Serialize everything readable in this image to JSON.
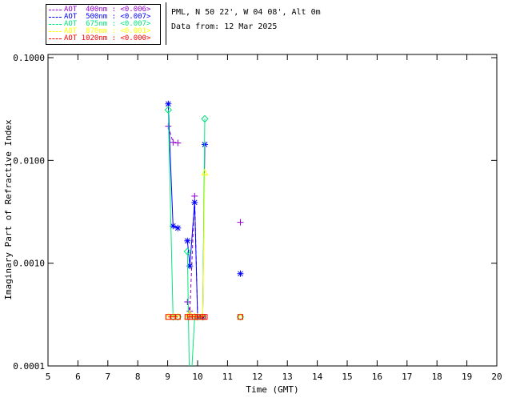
{
  "header": {
    "line1": "PML, N 50 22', W 04 08', Alt 0m",
    "line2": "Data from: 12 Mar 2025"
  },
  "chart_data": {
    "type": "line",
    "title": "",
    "xlabel": "Time (GMT)",
    "ylabel": "Imaginary Part of Refractive Index",
    "xlim": [
      5,
      20
    ],
    "ylim": [
      0.0001,
      0.1
    ],
    "yscale": "log",
    "grid": false,
    "legend_position": "top-left",
    "x_ticks": [
      5,
      6,
      7,
      8,
      9,
      10,
      11,
      12,
      13,
      14,
      15,
      16,
      17,
      18,
      19,
      20
    ],
    "y_ticks": [
      {
        "v": 0.0001,
        "label": "0.0001"
      },
      {
        "v": 0.001,
        "label": "0.0010"
      },
      {
        "v": 0.01,
        "label": "0.0100"
      },
      {
        "v": 0.1,
        "label": "0.1000"
      }
    ],
    "series": [
      {
        "key": "aot-400nm",
        "legend_label": "AOT  400nm : <0.006>",
        "color": "#9400D3",
        "marker": "plus",
        "linestyle": "dashed",
        "points": [
          [
            9.02,
            0.0215
          ],
          [
            9.18,
            0.015
          ],
          [
            9.34,
            0.0148
          ],
          null,
          [
            9.66,
            0.00042
          ],
          [
            9.74,
            0.00034
          ],
          [
            9.9,
            0.0045
          ],
          [
            10.0,
            0.0003
          ],
          [
            10.17,
            0.0003
          ],
          null,
          [
            11.43,
            0.0025
          ]
        ]
      },
      {
        "key": "aot-500nm",
        "legend_label": "AOT  500nm : <0.007>",
        "color": "#0000FF",
        "marker": "asterisk",
        "linestyle": "solid",
        "points": [
          [
            9.02,
            0.0355
          ],
          [
            9.18,
            0.0023
          ],
          [
            9.34,
            0.0022
          ],
          null,
          [
            9.66,
            0.00165
          ],
          [
            9.74,
            0.00094
          ],
          [
            9.9,
            0.0039
          ],
          [
            10.0,
            0.0003
          ],
          [
            10.17,
            0.0003
          ],
          [
            10.24,
            0.0143
          ],
          null,
          [
            11.43,
            0.00079
          ]
        ]
      },
      {
        "key": "aot-675nm",
        "legend_label": "AOT  675nm : <0.007>",
        "color": "#00E878",
        "marker": "diamond",
        "linestyle": "solid",
        "points": [
          [
            9.02,
            0.031
          ],
          [
            9.18,
            0.0003
          ],
          [
            9.34,
            0.0003
          ],
          null,
          [
            9.66,
            0.0013
          ],
          [
            9.74,
            4e-05
          ],
          [
            9.9,
            0.0003
          ],
          [
            10.0,
            0.0003
          ],
          [
            10.17,
            0.0003
          ],
          [
            10.24,
            0.0254
          ],
          null,
          [
            11.43,
            0.0003
          ]
        ]
      },
      {
        "key": "aot-870nm",
        "legend_label": "AOT  870nm : <0.001>",
        "color": "#FFFF00",
        "marker": "triangle",
        "linestyle": "solid",
        "points": [
          [
            9.02,
            0.0003
          ],
          [
            9.18,
            0.0003
          ],
          [
            9.34,
            0.0003
          ],
          null,
          [
            9.66,
            0.0003
          ],
          [
            9.74,
            0.00032
          ],
          [
            9.9,
            0.0003
          ],
          [
            10.0,
            0.0003
          ],
          [
            10.17,
            0.0003
          ],
          [
            10.24,
            0.0076
          ],
          null,
          [
            11.43,
            0.0003
          ]
        ]
      },
      {
        "key": "aot-1020nm",
        "legend_label": "AOT 1020nm : <0.000>",
        "color": "#FF0000",
        "marker": "square",
        "linestyle": "solid",
        "points": [
          [
            9.02,
            0.0003
          ],
          [
            9.18,
            0.0003
          ],
          [
            9.34,
            0.0003
          ],
          null,
          [
            9.66,
            0.0003
          ],
          [
            9.74,
            0.0003
          ],
          [
            9.9,
            0.0003
          ],
          [
            10.0,
            0.0003
          ],
          [
            10.17,
            0.0003
          ],
          [
            10.24,
            0.0003
          ],
          null,
          [
            11.43,
            0.0003
          ]
        ]
      }
    ]
  }
}
